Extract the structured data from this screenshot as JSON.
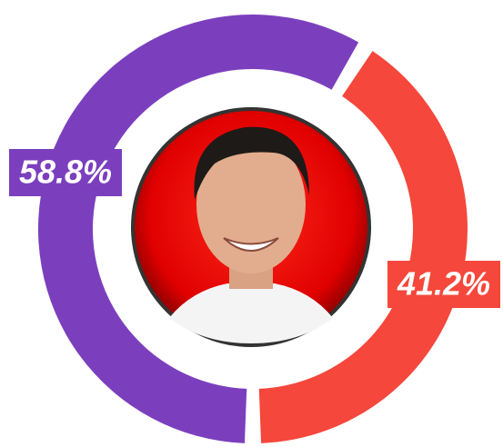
{
  "chart_data": {
    "type": "pie",
    "donut": true,
    "values": [
      58.8,
      41.2
    ],
    "value_labels": [
      "58.8%",
      "41.2%"
    ],
    "colors": [
      "#7b3fbe",
      "#f5473b"
    ]
  }
}
